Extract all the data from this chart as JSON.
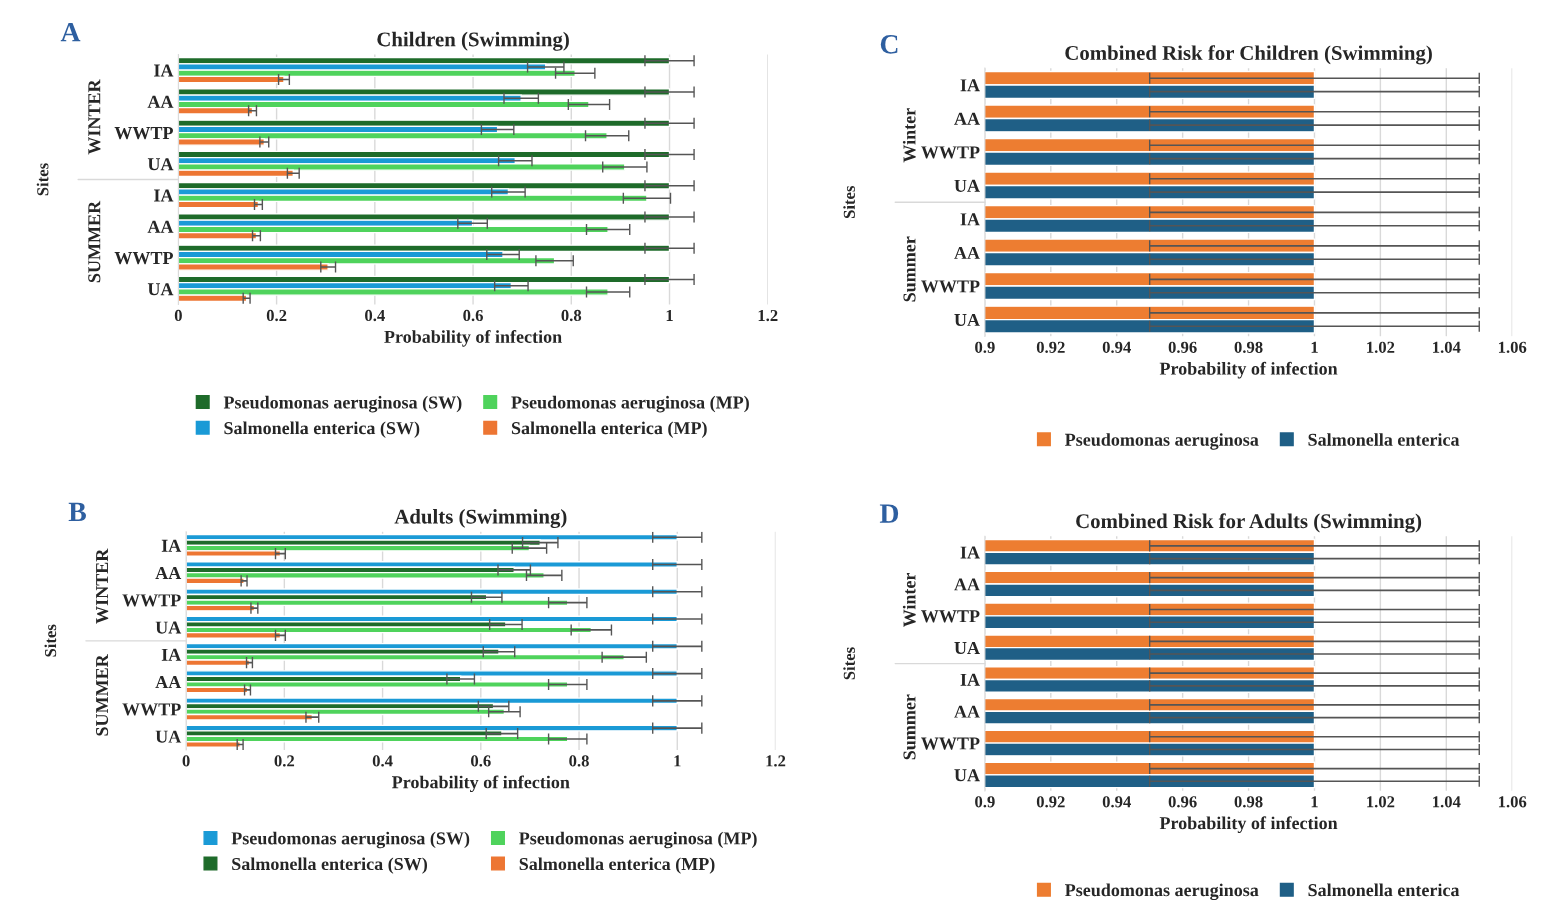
{
  "chart_data": [
    {
      "type": "bar",
      "orientation": "horizontal",
      "title": "Children (Swimming)",
      "xlabel": "Probability of infection",
      "ylabel": "Sites",
      "annotations": [
        "A",
        "WINTER",
        "SUMMER"
      ],
      "categories": [
        "IA",
        "AA",
        "WWTP",
        "UA",
        "IA",
        "AA",
        "WWTP",
        "UA"
      ],
      "xlim": [
        0,
        1.2
      ],
      "xticks": [
        0,
        0.2,
        0.4,
        0.6,
        0.8,
        1,
        1.2
      ],
      "grid": "x",
      "legend": "bottom",
      "series": [
        {
          "name": "Pseudomonas aeruginosa (SW)",
          "color": "#1e6b2a",
          "values": [
            1,
            1,
            1,
            1,
            1,
            1,
            1,
            1
          ],
          "errors": [
            0.05,
            0.05,
            0.05,
            0.05,
            0.05,
            0.05,
            0.05,
            0.05
          ]
        },
        {
          "name": "Salmonella enterica (SW)",
          "color": "#1a9ad6",
          "values": [
            0.748,
            0.698,
            0.65,
            0.686,
            0.672,
            0.599,
            0.661,
            0.678
          ],
          "errors": [
            0.037,
            0.035,
            0.033,
            0.034,
            0.034,
            0.03,
            0.033,
            0.034
          ]
        },
        {
          "name": "Pseudomonas aeruginosa (MP)",
          "color": "#4fd35c",
          "values": [
            0.808,
            0.836,
            0.873,
            0.909,
            0.954,
            0.875,
            0.766,
            0.875
          ],
          "errors": [
            0.04,
            0.042,
            0.044,
            0.045,
            0.048,
            0.044,
            0.038,
            0.044
          ]
        },
        {
          "name": "Salmonella enterica (MP)",
          "color": "#ed7633",
          "values": [
            0.215,
            0.151,
            0.175,
            0.234,
            0.163,
            0.159,
            0.305,
            0.139
          ],
          "errors": [
            0.011,
            0.008,
            0.009,
            0.012,
            0.008,
            0.008,
            0.015,
            0.007
          ]
        }
      ]
    },
    {
      "type": "bar",
      "orientation": "horizontal",
      "title": "Combined Risk for Children (Swimming)",
      "xlabel": "Probability of infection",
      "ylabel": "Sites",
      "annotations": [
        "C",
        "Winter",
        "Summer"
      ],
      "categories": [
        "IA",
        "AA",
        "WWTP",
        "UA",
        "IA",
        "AA",
        "WWTP",
        "UA"
      ],
      "xlim": [
        0.9,
        1.06
      ],
      "xticks": [
        0.9,
        0.92,
        0.94,
        0.96,
        0.98,
        1,
        1.02,
        1.04,
        1.06
      ],
      "grid": "x",
      "legend": "bottom",
      "series": [
        {
          "name": "Pseudomonas aeruginosa",
          "color": "#ed7d31",
          "values": [
            1,
            1,
            1,
            1,
            1,
            1,
            1,
            1
          ],
          "errors": [
            0.05,
            0.05,
            0.05,
            0.05,
            0.05,
            0.05,
            0.05,
            0.05
          ]
        },
        {
          "name": "Salmonella enterica",
          "color": "#1f5f86",
          "values": [
            1,
            1,
            1,
            1,
            1,
            1,
            1,
            1
          ],
          "errors": [
            0.05,
            0.05,
            0.05,
            0.05,
            0.05,
            0.05,
            0.05,
            0.05
          ]
        }
      ]
    },
    {
      "type": "bar",
      "orientation": "horizontal",
      "title": "Adults (Swimming)",
      "xlabel": "Probability of infection",
      "ylabel": "Sites",
      "annotations": [
        "B",
        "WINTER",
        "SUMMER"
      ],
      "categories": [
        "IA",
        "AA",
        "WWTP",
        "UA",
        "IA",
        "AA",
        "WWTP",
        "UA"
      ],
      "xlim": [
        0,
        1.2
      ],
      "xticks": [
        0,
        0.2,
        0.4,
        0.6,
        0.8,
        1,
        1.2
      ],
      "grid": "x",
      "legend": "bottom",
      "series": [
        {
          "name": "Pseudomonas aeruginosa (SW)",
          "color": "#1a9ad6",
          "values": [
            1,
            1,
            1,
            1,
            1,
            1,
            1,
            1
          ],
          "errors": [
            0.05,
            0.05,
            0.05,
            0.05,
            0.05,
            0.05,
            0.05,
            0.05
          ]
        },
        {
          "name": "Salmonella enterica (SW)",
          "color": "#1e6b2a",
          "values": [
            0.721,
            0.668,
            0.612,
            0.651,
            0.637,
            0.559,
            0.626,
            0.643
          ],
          "errors": [
            0.036,
            0.033,
            0.031,
            0.033,
            0.032,
            0.028,
            0.031,
            0.032
          ]
        },
        {
          "name": "Pseudomonas aeruginosa (MP)",
          "color": "#4fd35c",
          "values": [
            0.699,
            0.729,
            0.777,
            0.825,
            0.892,
            0.777,
            0.648,
            0.777
          ],
          "errors": [
            0.035,
            0.036,
            0.039,
            0.041,
            0.045,
            0.039,
            0.032,
            0.039
          ]
        },
        {
          "name": "Salmonella enterica (MP)",
          "color": "#ed7633",
          "values": [
            0.192,
            0.118,
            0.139,
            0.192,
            0.129,
            0.125,
            0.257,
            0.11
          ],
          "errors": [
            0.01,
            0.006,
            0.007,
            0.01,
            0.006,
            0.006,
            0.013,
            0.006
          ]
        }
      ]
    },
    {
      "type": "bar",
      "orientation": "horizontal",
      "title": "Combined Risk for Adults (Swimming)",
      "xlabel": "Probability of infection",
      "ylabel": "Sites",
      "annotations": [
        "D",
        "Winter",
        "Summer"
      ],
      "categories": [
        "IA",
        "AA",
        "WWTP",
        "UA",
        "IA",
        "AA",
        "WWTP",
        "UA"
      ],
      "xlim": [
        0.9,
        1.06
      ],
      "xticks": [
        0.9,
        0.92,
        0.94,
        0.96,
        0.98,
        1,
        1.02,
        1.04,
        1.06
      ],
      "grid": "x",
      "legend": "bottom",
      "series": [
        {
          "name": "Pseudomonas aeruginosa",
          "color": "#ed7d31",
          "values": [
            1,
            1,
            1,
            1,
            1,
            1,
            1,
            1
          ],
          "errors": [
            0.05,
            0.05,
            0.05,
            0.05,
            0.05,
            0.05,
            0.05,
            0.05
          ]
        },
        {
          "name": "Salmonella enterica",
          "color": "#1f5f86",
          "values": [
            1,
            1,
            1,
            1,
            1,
            1,
            1,
            1
          ],
          "errors": [
            0.05,
            0.05,
            0.05,
            0.05,
            0.05,
            0.05,
            0.05,
            0.05
          ]
        }
      ]
    }
  ]
}
